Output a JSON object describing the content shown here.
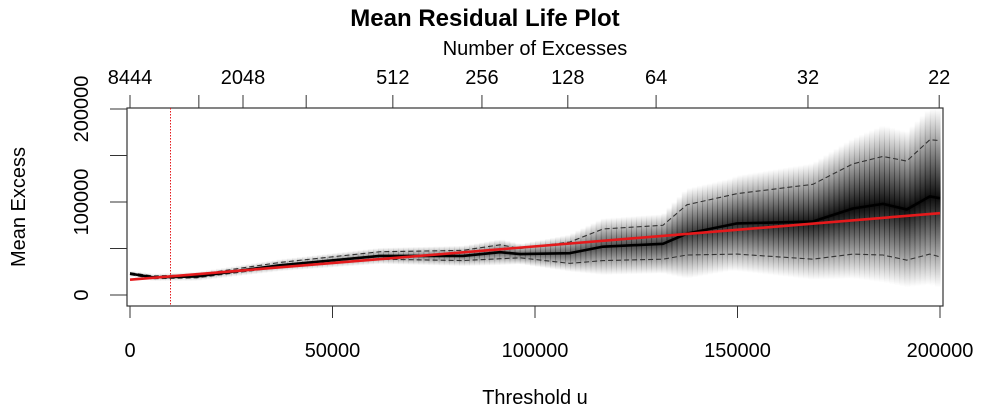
{
  "chart_data": {
    "type": "line",
    "title": "Mean Residual Life Plot",
    "xlabel": "Threshold u",
    "ylabel": "Mean Excess",
    "top_axis_label": "Number of Excesses",
    "xlim": [
      0,
      200000
    ],
    "ylim": [
      0,
      200000
    ],
    "grid": false,
    "x_ticks": [
      0,
      50000,
      100000,
      150000,
      200000
    ],
    "x_tick_labels": [
      "0",
      "50000",
      "100000",
      "150000",
      "200000"
    ],
    "y_ticks": [
      0,
      50000,
      100000,
      150000,
      200000
    ],
    "y_tick_labels": [
      "0",
      "",
      "100000",
      "",
      "200000"
    ],
    "top_ticks": [
      {
        "threshold": 0,
        "label": "8444"
      },
      {
        "threshold": 17000,
        "label": ""
      },
      {
        "threshold": 27900,
        "label": "2048"
      },
      {
        "threshold": 43500,
        "label": ""
      },
      {
        "threshold": 64900,
        "label": "512"
      },
      {
        "threshold": 86900,
        "label": "256"
      },
      {
        "threshold": 108100,
        "label": "128"
      },
      {
        "threshold": 129900,
        "label": "64"
      },
      {
        "threshold": 167400,
        "label": "32"
      },
      {
        "threshold": 199800,
        "label": "22"
      }
    ],
    "selected_threshold": 10000,
    "series": [
      {
        "role": "mean excess",
        "color": "#000000",
        "x": [
          0,
          5700,
          16500,
          37000,
          61700,
          82200,
          91400,
          96300,
          108600,
          116800,
          131600,
          137500,
          149900,
          168600,
          178500,
          185900,
          191800,
          197500,
          200000
        ],
        "y": [
          23000,
          19000,
          20000,
          32000,
          42000,
          42000,
          46000,
          44000,
          45000,
          52000,
          55000,
          66000,
          77000,
          79000,
          93000,
          98000,
          92000,
          106000,
          104000
        ]
      },
      {
        "role": "upper confidence bound",
        "color": "#333333",
        "dash": true,
        "x": [
          0,
          5700,
          16500,
          37000,
          61700,
          82200,
          91400,
          96300,
          108600,
          116800,
          131600,
          137500,
          149900,
          168600,
          178500,
          185900,
          191800,
          197500,
          200000
        ],
        "y": [
          24000,
          20500,
          22000,
          35000,
          46500,
          48000,
          54000,
          50000,
          57000,
          71000,
          75000,
          97000,
          109000,
          119000,
          141000,
          149000,
          144000,
          167000,
          166000
        ]
      },
      {
        "role": "lower confidence bound",
        "color": "#333333",
        "dash": true,
        "x": [
          0,
          5700,
          16500,
          37000,
          61700,
          82200,
          91400,
          96300,
          108600,
          116800,
          131600,
          137500,
          149900,
          168600,
          178500,
          185900,
          191800,
          197500,
          200000
        ],
        "y": [
          22000,
          17500,
          18500,
          30000,
          38500,
          37000,
          39000,
          40000,
          34000,
          37000,
          38500,
          43000,
          44000,
          38500,
          44000,
          43000,
          37500,
          44000,
          41000
        ]
      },
      {
        "role": "linear fit",
        "color": "#e41a1c",
        "x": [
          0,
          200000
        ],
        "y": [
          16500,
          88000
        ]
      }
    ]
  }
}
